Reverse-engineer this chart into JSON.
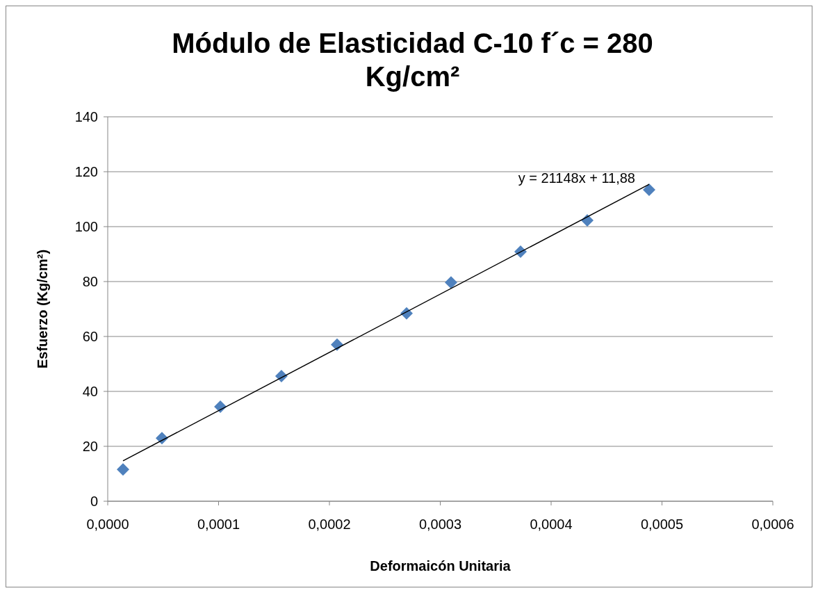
{
  "chart_data": {
    "type": "scatter",
    "title": "Módulo de Elasticidad C-10 f´c = 280 Kg/cm²",
    "xlabel": "Deformaicón Unitaria",
    "ylabel": "Esfuerzo (Kg/cm²)",
    "xlim": [
      0,
      0.0006
    ],
    "xticks": [
      {
        "value": 0,
        "label": "0,0000"
      },
      {
        "value": 0.0001,
        "label": "0,0001"
      },
      {
        "value": 0.0002,
        "label": "0,0002"
      },
      {
        "value": 0.0003,
        "label": "0,0003"
      },
      {
        "value": 0.0004,
        "label": "0,0004"
      },
      {
        "value": 0.0005,
        "label": "0,0005"
      },
      {
        "value": 0.0006,
        "label": "0,0006"
      }
    ],
    "ylim": [
      0,
      140
    ],
    "yticks": [
      0,
      20,
      40,
      60,
      80,
      100,
      120,
      140
    ],
    "grid": "y",
    "marker": "diamond",
    "series": [
      {
        "color": "#4f81bd",
        "x": [
          1.38e-05,
          4.89e-05,
          0.0001016,
          0.0001567,
          0.0002069,
          0.0002696,
          0.0003097,
          0.0003724,
          0.0004326,
          0.0004884
        ],
        "values": [
          11.6,
          23.0,
          34.4,
          45.6,
          57.0,
          68.4,
          79.7,
          90.9,
          102.3,
          113.4
        ]
      },
      {
        "type": "line",
        "color": "#000000",
        "marker": "none",
        "x": [
          1.38e-05,
          0.0004884
        ],
        "values": [
          14.7,
          115.4
        ]
      }
    ],
    "annotations": [
      "y = 21148x + 11,88"
    ]
  }
}
